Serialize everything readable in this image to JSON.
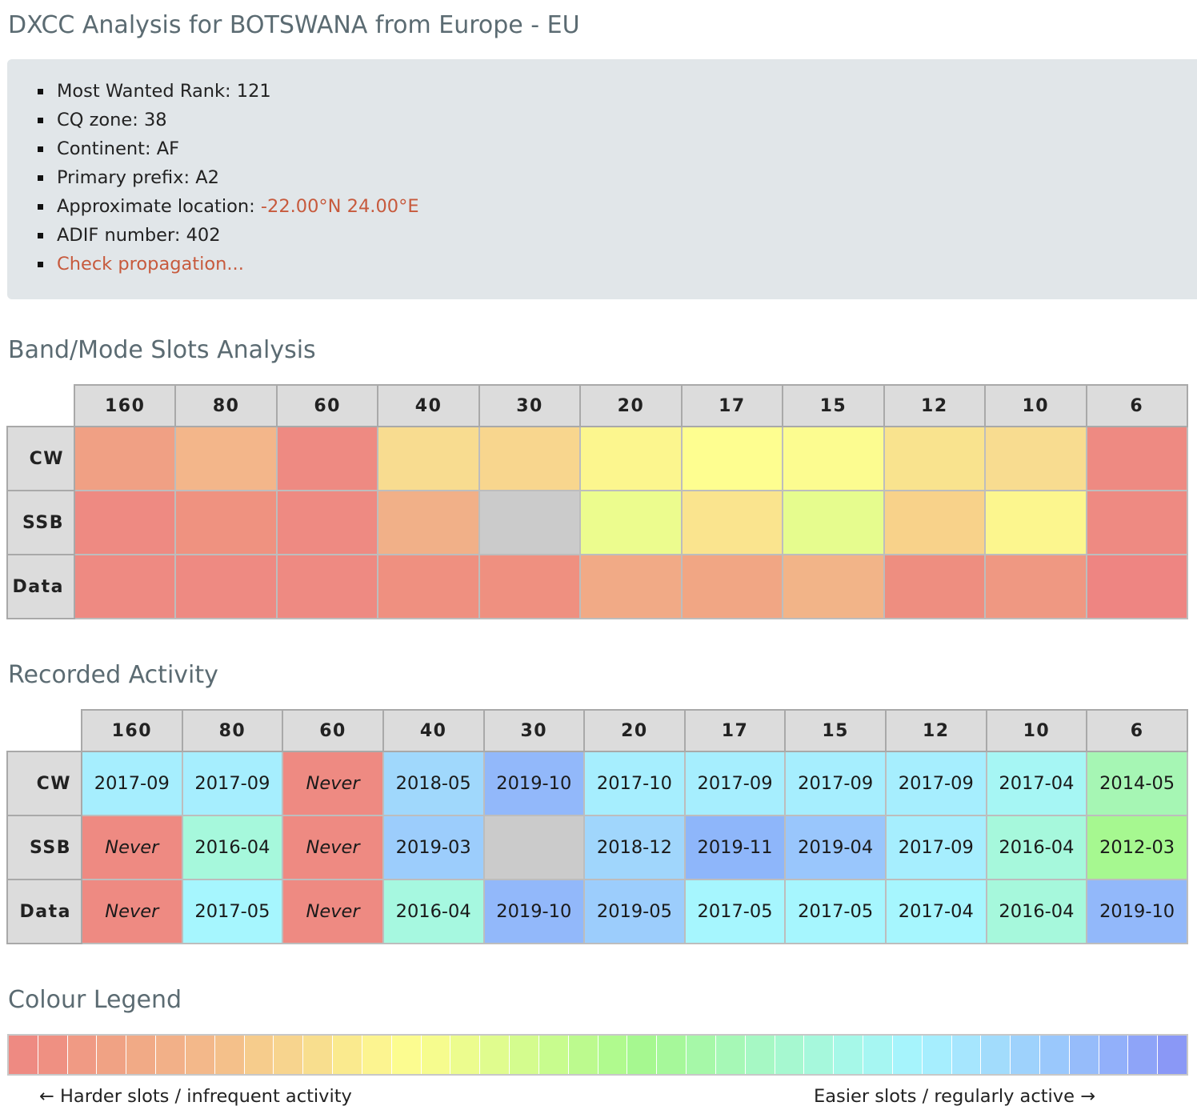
{
  "title": "DXCC Analysis for BOTSWANA from Europe - EU",
  "info": {
    "most_wanted_rank": "Most Wanted Rank: 121",
    "cq_zone": "CQ zone: 38",
    "continent": "Continent: AF",
    "primary_prefix": "Primary prefix: A2",
    "location_label": "Approximate location: ",
    "location_value": "-22.00°N 24.00°E",
    "adif_number": "ADIF number: 402",
    "check_propagation": "Check propagation..."
  },
  "slots": {
    "heading": "Band/Mode Slots Analysis",
    "bands": [
      "160",
      "80",
      "60",
      "40",
      "30",
      "20",
      "17",
      "15",
      "12",
      "10",
      "6"
    ],
    "modes": [
      "CW",
      "SSB",
      "Data"
    ],
    "colors": [
      [
        "#f0a084",
        "#f3b68a",
        "#ee8a82",
        "#f8dc90",
        "#f8d68e",
        "#fcf68e",
        "#fefe90",
        "#fcfc90",
        "#f9e38e",
        "#f8dc90",
        "#ee8a82"
      ],
      [
        "#ee8a82",
        "#ef9280",
        "#ee8a82",
        "#f1b088",
        "#cbcbcb",
        "#ecfc8e",
        "#fae48e",
        "#e6fc8e",
        "#f8d28a",
        "#fcf68e",
        "#ee8a82"
      ],
      [
        "#ee8a82",
        "#ee8a82",
        "#ee8a82",
        "#ef9080",
        "#ef9080",
        "#f1aa86",
        "#f1a684",
        "#f2b488",
        "#ee8e80",
        "#ef9882",
        "#ee8582"
      ]
    ]
  },
  "activity": {
    "heading": "Recorded Activity",
    "bands": [
      "160",
      "80",
      "60",
      "40",
      "30",
      "20",
      "17",
      "15",
      "12",
      "10",
      "6"
    ],
    "modes": [
      "CW",
      "SSB",
      "Data"
    ],
    "values": [
      [
        "2017-09",
        "2017-09",
        "Never",
        "2018-05",
        "2019-10",
        "2017-10",
        "2017-09",
        "2017-09",
        "2017-09",
        "2017-04",
        "2014-05"
      ],
      [
        "Never",
        "2016-04",
        "Never",
        "2019-03",
        "",
        "2018-12",
        "2019-11",
        "2019-04",
        "2017-09",
        "2016-04",
        "2012-03"
      ],
      [
        "Never",
        "2017-05",
        "Never",
        "2016-04",
        "2019-10",
        "2019-05",
        "2017-05",
        "2017-05",
        "2017-04",
        "2016-04",
        "2019-10"
      ]
    ],
    "colors": [
      [
        "#a6eefe",
        "#a6eefe",
        "#ee8a82",
        "#a0d8fc",
        "#92b8fa",
        "#a6eefe",
        "#a6eefe",
        "#a6eefe",
        "#a6eefe",
        "#a6f6f4",
        "#a6f6b4"
      ],
      [
        "#ee8a82",
        "#a6f8dc",
        "#ee8a82",
        "#9ccdfc",
        "#cbcbcb",
        "#a0d6fc",
        "#8eb6fa",
        "#99c6fc",
        "#a6eefe",
        "#a6f8dc",
        "#a6f890"
      ],
      [
        "#ee8a82",
        "#a6f6fe",
        "#ee8a82",
        "#a6f8e0",
        "#92b8fa",
        "#9ccdfc",
        "#a6f6fe",
        "#a6f6fe",
        "#a6f6fe",
        "#a6f8dc",
        "#92b8fa"
      ]
    ]
  },
  "legend": {
    "heading": "Colour Legend",
    "left_label": "← Harder slots / infrequent activity",
    "right_label": "Easier slots / regularly active →",
    "colors": [
      "#ee8a82",
      "#ef9082",
      "#f09a84",
      "#f0a284",
      "#f1aa86",
      "#f2b088",
      "#f3b88a",
      "#f4c08a",
      "#f6cc8c",
      "#f7d48e",
      "#f8de8e",
      "#faea8e",
      "#fcf490",
      "#fcfc90",
      "#f6fc8e",
      "#ecfc8e",
      "#e0fc8e",
      "#d4fc8e",
      "#c8fc8e",
      "#bcfa8e",
      "#b0fa8e",
      "#a6f890",
      "#a6f89a",
      "#a6f8a8",
      "#a6f8b6",
      "#a6f8c4",
      "#a6f8d0",
      "#a6f8dc",
      "#a6f8e8",
      "#a6f6f2",
      "#a6f4fc",
      "#a6eefe",
      "#a6e6fe",
      "#a2dcfc",
      "#9ed2fc",
      "#9ac8fc",
      "#96bcfa",
      "#92b0fa",
      "#8ea4f8",
      "#8a98f6"
    ]
  }
}
